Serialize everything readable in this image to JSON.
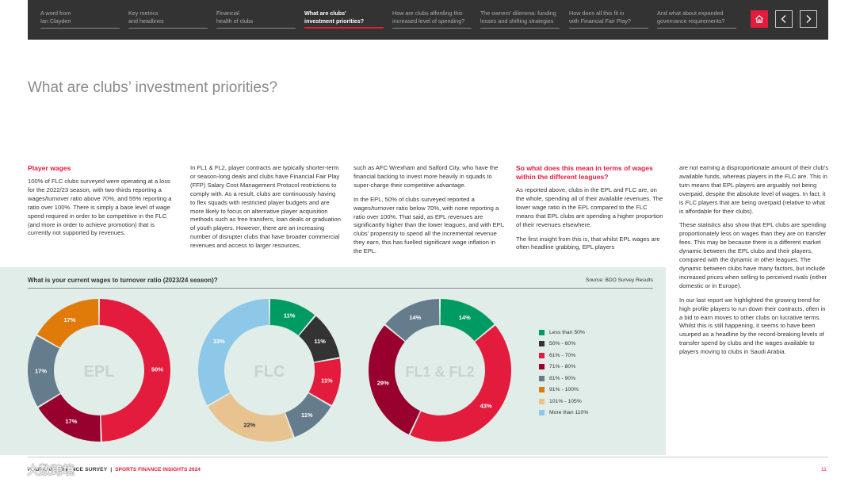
{
  "nav": {
    "items": [
      {
        "line1": "A word from",
        "line2": "Ian Clayden"
      },
      {
        "line1": "Key metrics",
        "line2": "and headlines"
      },
      {
        "line1": "Financial",
        "line2": "health of clubs"
      },
      {
        "line1": "What are clubs'",
        "line2": "investment priorities?"
      },
      {
        "line1": "How are clubs affording this",
        "line2": "increased level of spending?"
      },
      {
        "line1": "The owners' dilemma: funding",
        "line2": "losses and shifting strategies"
      },
      {
        "line1": "How does all this fit in",
        "line2": "with Financial Fair Play?"
      },
      {
        "line1": "And what about expanded",
        "line2": "governance requirements?"
      }
    ],
    "active_index": 3,
    "buttons": {
      "home": "home-icon",
      "prev": "chevron-left-icon",
      "next": "chevron-right-icon"
    }
  },
  "page_title": "What are clubs’ investment priorities?",
  "columns": {
    "col1": {
      "heading": "Player wages",
      "paras": [
        "100% of FLC clubs surveyed were operating at a loss for the 2022/23 season, with two-thirds reporting a wages/turnover ratio above 70%, and 55% reporting a ratio over 100%. There is simply a base level of wage spend required in order to be competitive in the FLC (and more in order to achieve promotion) that is currently not supported by revenues."
      ]
    },
    "col2": {
      "paras": [
        "In FL1 & FL2, player contracts are typically shorter-term or season-long deals and clubs have Financial Fair Play (FFP) Salary Cost Management Protocol restrictions to comply with. As a result, clubs are continuously having to flex squads with restricted player budgets and are more likely to focus on alternative player acquisition methods such as free transfers, loan deals or graduation of youth players. However, there are an increasing number of disrupter clubs that have broader commercial revenues and access to larger resources,"
      ]
    },
    "col3": {
      "paras": [
        "such as AFC Wrexham and Salford City, who have the financial backing to invest more heavily in squads to super-charge their competitive advantage.",
        "In the EPL, 50% of clubs surveyed reported a wages/turnover ratio below 70%, with none reporting a ratio over 100%. That said, as EPL revenues are significantly higher than the lower leagues, and with EPL clubs’ propensity to spend all the incremental revenue they earn, this has fuelled significant wage inflation in the EPL."
      ]
    },
    "col4": {
      "heading": "So what does this mean in terms of wages within the different leagues?",
      "paras": [
        "As reported above, clubs in the EPL and FLC are, on the whole, spending all of their available revenues. The lower wage ratio in the EPL compared to the FLC means that EPL clubs are spending a higher proportion of their revenues elsewhere.",
        "The first insight from this is, that whilst EPL wages are often headline grabbing, EPL players"
      ]
    },
    "col5": {
      "paras": [
        "are not earning a disproportionate amount of their club’s available funds, whereas players in the FLC are. This in turn means that EPL players are arguably not being overpaid, despite the absolute level of wages. In fact, it is FLC players that are being overpaid (relative to what is affordable for their clubs).",
        "These statistics also show that EPL clubs are spending proportionately less on wages than they are on transfer fees. This may be because there is a different market dynamic between the EPL clubs and their players, compared with the dynamic in other leagues. The dynamic between clubs have many factors, but include increased prices when selling to perceived rivals (either domestic or in Europe).",
        "In our last report we highlighted the growing trend for high profile players to run down their contracts, often in a bid to earn moves to other clubs on lucrative terms. Whilst this is still happening, it seems to have been usurped as a headline by the record-breaking levels of transfer spend by clubs and the wages available to players moving to clubs in Saudi Arabia."
      ]
    }
  },
  "chart_data": {
    "type": "pie",
    "title": "What is your current wages to turnover ratio (2023/24 season)?",
    "source": "Source: BDO Survey Results",
    "legend_position": "right",
    "categories": [
      "Less than 50%",
      "50% - 60%",
      "61% - 70%",
      "71% - 80%",
      "81% - 90%",
      "91% - 100%",
      "101% - 105%",
      "More than 110%"
    ],
    "colors": [
      "#009a63",
      "#333333",
      "#e31b3c",
      "#98002e",
      "#657c8c",
      "#e07b0a",
      "#e9c38f",
      "#8dc8e8"
    ],
    "series": [
      {
        "name": "EPL",
        "values": [
          0,
          0,
          50,
          17,
          17,
          17,
          0,
          0
        ]
      },
      {
        "name": "FLC",
        "values": [
          11,
          11,
          11,
          0,
          11,
          0,
          22,
          33
        ]
      },
      {
        "name": "FL1 & FL2",
        "values": [
          14,
          0,
          43,
          29,
          14,
          0,
          0,
          0
        ]
      }
    ],
    "value_suffix": "%"
  },
  "footer": {
    "publication": "FOOTBALL FINANCE SURVEY",
    "separator": "|",
    "series": "SPORTS FINANCE INSIGHTS 2024",
    "page": "11",
    "watermark": "大数跨境"
  }
}
